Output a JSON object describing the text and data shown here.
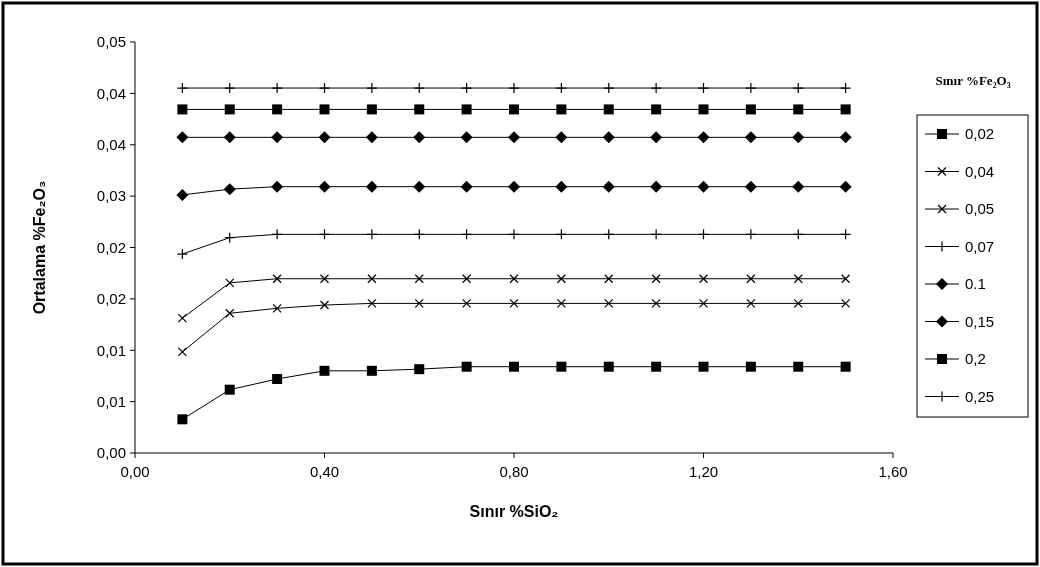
{
  "chart_data": {
    "type": "line",
    "xlabel": "Sınır %SiO₂",
    "ylabel": "Ortalama %Fe₂O₃",
    "legend_title": "Sınır %Fe₂O₃",
    "legend": "right",
    "grid": false,
    "x": [
      0.1,
      0.2,
      0.3,
      0.4,
      0.5,
      0.6,
      0.7,
      0.8,
      0.9,
      1.0,
      1.1,
      1.2,
      1.3,
      1.4,
      1.5
    ],
    "xlim": [
      0,
      1.6
    ],
    "xticks": [
      {
        "value": 0,
        "label": "0,00"
      },
      {
        "value": 0.4,
        "label": "0,40"
      },
      {
        "value": 0.8,
        "label": "0,80"
      },
      {
        "value": 1.2,
        "label": "1,20"
      },
      {
        "value": 1.6,
        "label": "1,60"
      }
    ],
    "ylim": [
      0,
      0.05
    ],
    "yticks": [
      {
        "value": 0,
        "label": "0,00"
      },
      {
        "value": 0.00625,
        "label": "0,01"
      },
      {
        "value": 0.0125,
        "label": "0,01"
      },
      {
        "value": 0.01875,
        "label": "0,02"
      },
      {
        "value": 0.025,
        "label": "0,02"
      },
      {
        "value": 0.03125,
        "label": "0,03"
      },
      {
        "value": 0.0375,
        "label": "0,04"
      },
      {
        "value": 0.04375,
        "label": "0,04"
      },
      {
        "value": 0.05,
        "label": "0,05"
      }
    ],
    "series": [
      {
        "name": "0,02",
        "color": "#000000",
        "marker": "square",
        "values": [
          0.0041,
          0.0077,
          0.009,
          0.01,
          0.01,
          0.0102,
          0.0105,
          0.0105,
          0.0105,
          0.0105,
          0.0105,
          0.0105,
          0.0105,
          0.0105,
          0.0105
        ]
      },
      {
        "name": "0,04",
        "color": "#000000",
        "marker": "cross",
        "values": [
          0.0123,
          0.017,
          0.0176,
          0.018,
          0.0182,
          0.0182,
          0.0182,
          0.0182,
          0.0182,
          0.0182,
          0.0182,
          0.0182,
          0.0182,
          0.0182,
          0.0182
        ]
      },
      {
        "name": "0,05",
        "color": "#000000",
        "marker": "cross",
        "values": [
          0.0164,
          0.0207,
          0.0212,
          0.0212,
          0.0212,
          0.0212,
          0.0212,
          0.0212,
          0.0212,
          0.0212,
          0.0212,
          0.0212,
          0.0212,
          0.0212,
          0.0212
        ]
      },
      {
        "name": "0,07",
        "color": "#000000",
        "marker": "plus",
        "values": [
          0.0242,
          0.0262,
          0.0266,
          0.0266,
          0.0266,
          0.0266,
          0.0266,
          0.0266,
          0.0266,
          0.0266,
          0.0266,
          0.0266,
          0.0266,
          0.0266,
          0.0266
        ]
      },
      {
        "name": "0.1",
        "color": "#000000",
        "marker": "diamond",
        "values": [
          0.0314,
          0.0321,
          0.0324,
          0.0324,
          0.0324,
          0.0324,
          0.0324,
          0.0324,
          0.0324,
          0.0324,
          0.0324,
          0.0324,
          0.0324,
          0.0324,
          0.0324
        ]
      },
      {
        "name": "0,15",
        "color": "#000000",
        "marker": "diamond",
        "values": [
          0.0384,
          0.0384,
          0.0384,
          0.0384,
          0.0384,
          0.0384,
          0.0384,
          0.0384,
          0.0384,
          0.0384,
          0.0384,
          0.0384,
          0.0384,
          0.0384,
          0.0384
        ]
      },
      {
        "name": "0,2",
        "color": "#000000",
        "marker": "square",
        "values": [
          0.0418,
          0.0418,
          0.0418,
          0.0418,
          0.0418,
          0.0418,
          0.0418,
          0.0418,
          0.0418,
          0.0418,
          0.0418,
          0.0418,
          0.0418,
          0.0418,
          0.0418
        ]
      },
      {
        "name": "0,25",
        "color": "#000000",
        "marker": "plus",
        "values": [
          0.0444,
          0.0444,
          0.0444,
          0.0444,
          0.0444,
          0.0444,
          0.0444,
          0.0444,
          0.0444,
          0.0444,
          0.0444,
          0.0444,
          0.0444,
          0.0444,
          0.0444
        ]
      }
    ]
  }
}
